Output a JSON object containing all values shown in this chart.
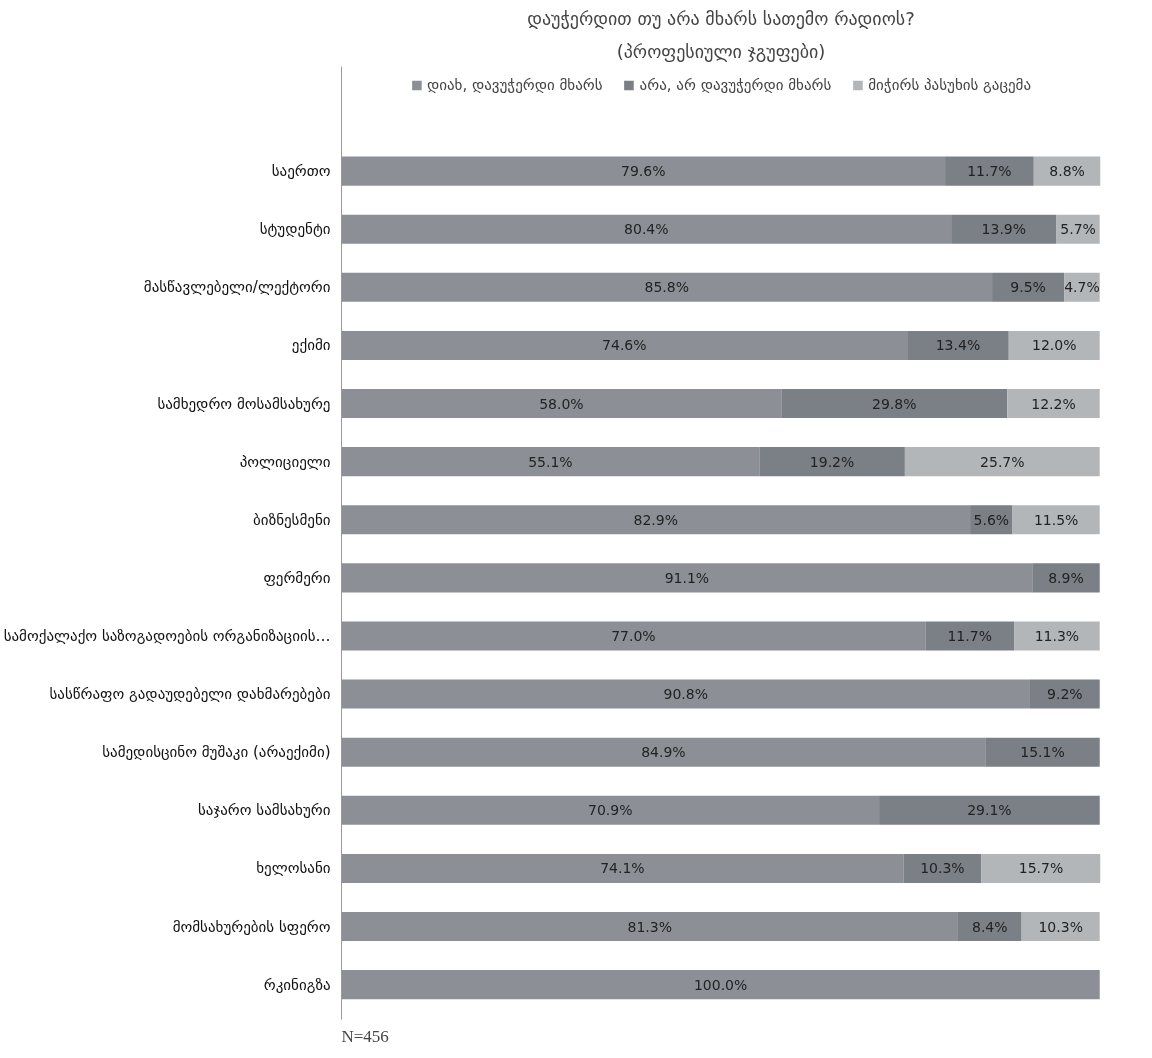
{
  "chart_data": {
    "type": "bar",
    "orientation": "horizontal",
    "stacked": true,
    "title": "დაუჭერდით თუ არა მხარს სათემო რადიოს?",
    "subtitle": "(პროფესიული ჯგუფები)",
    "categories": [
      "საერთო",
      "სტუდენტი",
      "მასწავლებელი/ლექტორი",
      "ექიმი",
      "სამხედრო მოსამსახურე",
      "პოლიციელი",
      "ბიზნესმენი",
      "ფერმერი",
      "სამოქალაქო საზოგადოების ორგანიზაციის…",
      "სასწრაფო გადაუდებელი დახმარებები",
      "სამედისცინო მუშაკი (არაექიმი)",
      "საჯარო სამსახური",
      "ხელოსანი",
      "მომსახურების სფერო",
      "რკინიგზა"
    ],
    "series": [
      {
        "name": "დიახ, დავუჭერდი მხარს",
        "color": "#8c9096",
        "values": [
          79.6,
          80.4,
          85.8,
          74.6,
          58.0,
          55.1,
          82.9,
          91.1,
          77.0,
          90.8,
          84.9,
          70.9,
          74.1,
          81.3,
          100.0
        ],
        "value_labels": [
          "79.6%",
          "80.4%",
          "85.8%",
          "74.6%",
          "58.0%",
          "55.1%",
          "82.9%",
          "91.1%",
          "77.0%",
          "90.8%",
          "84.9%",
          "70.9%",
          "74.1%",
          "81.3%",
          "100.0%"
        ]
      },
      {
        "name": "არა, არ დავუჭერდი მხარს",
        "color": "#7b7f86",
        "values": [
          11.7,
          13.9,
          9.5,
          13.4,
          29.8,
          19.2,
          5.6,
          8.9,
          11.7,
          9.2,
          15.1,
          29.1,
          10.3,
          8.4,
          null
        ],
        "value_labels": [
          "11.7%",
          "13.9%",
          "9.5%",
          "13.4%",
          "29.8%",
          "19.2%",
          "5.6%",
          "8.9%",
          "11.7%",
          "9.2%",
          "15.1%",
          "29.1%",
          "10.3%",
          "8.4%",
          null
        ]
      },
      {
        "name": "მიჭირს პასუხის გაცემა",
        "color": "#b3b6b9",
        "values": [
          8.8,
          5.7,
          4.7,
          12.0,
          12.2,
          25.7,
          11.5,
          null,
          11.3,
          null,
          null,
          null,
          15.7,
          10.3,
          null
        ],
        "value_labels": [
          "8.8%",
          "5.7%",
          "4.7%",
          "12.0%",
          "12.2%",
          "25.7%",
          "11.5%",
          null,
          "11.3%",
          null,
          null,
          null,
          "15.7%",
          "10.3%",
          null
        ]
      }
    ],
    "annotations": [
      "N=456"
    ],
    "legend": "top",
    "tick_labels": "y",
    "grid": false
  }
}
